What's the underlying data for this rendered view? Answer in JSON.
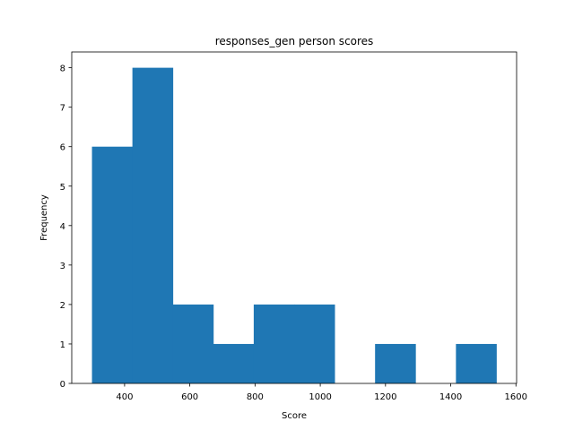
{
  "chart_data": {
    "type": "bar",
    "title": "responses_gen person scores",
    "xlabel": "Score",
    "ylabel": "Frequency",
    "bin_edges": [
      300,
      424,
      548,
      672,
      796,
      920,
      1044,
      1168,
      1292,
      1416,
      1540
    ],
    "values": [
      6,
      8,
      2,
      1,
      2,
      2,
      0,
      1,
      0,
      1
    ],
    "xlim": [
      238,
      1602
    ],
    "ylim": [
      0,
      8.4
    ],
    "xticks": [
      400,
      600,
      800,
      1000,
      1200,
      1400,
      1600
    ],
    "yticks": [
      0,
      1,
      2,
      3,
      4,
      5,
      6,
      7,
      8
    ],
    "bar_color": "#1f77b4",
    "grid": false,
    "legend": "none"
  }
}
